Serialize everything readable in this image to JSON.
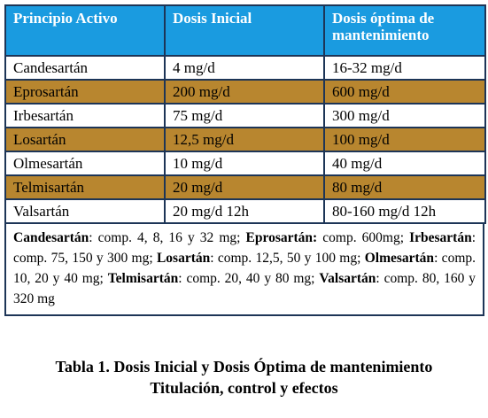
{
  "table": {
    "header": [
      "Principio Activo",
      "Dosis Inicial",
      "Dosis óptima de mantenimiento"
    ],
    "rows": [
      [
        "Candesartán",
        "4 mg/d",
        "16-32 mg/d"
      ],
      [
        "Eprosartán",
        "200 mg/d",
        "600 mg/d"
      ],
      [
        "Irbesartán",
        "75 mg/d",
        "300 mg/d"
      ],
      [
        "Losartán",
        "12,5 mg/d",
        "100 mg/d"
      ],
      [
        "Olmesartán",
        "10 mg/d",
        "40 mg/d"
      ],
      [
        "Telmisartán",
        "20 mg/d",
        "80 mg/d"
      ],
      [
        "Valsartán",
        "20 mg/d 12h",
        "80-160 mg/d 12h"
      ]
    ],
    "footnote": [
      {
        "name": "Candesartán",
        "detail": ": comp. 4, 8, 16 y 32 mg; "
      },
      {
        "name": "Eprosartán:",
        "detail": " comp. 600mg; "
      },
      {
        "name": "Irbesartán",
        "detail": ": comp. 75, 150 y 300 mg; "
      },
      {
        "name": "Losartán",
        "detail": ": comp. 12,5, 50 y 100 mg; "
      },
      {
        "name": "Olmesartán",
        "detail": ": comp. 10, 20 y 40 mg; "
      },
      {
        "name": "Telmisartán",
        "detail": ": comp. 20, 40 y 80 mg; "
      },
      {
        "name": "Valsartán",
        "detail": ": comp. 80, 160 y 320 mg"
      }
    ]
  },
  "caption": {
    "line1": "Tabla 1. Dosis Inicial y Dosis Óptima de mantenimiento",
    "line2": "Titulación, control y efectos"
  }
}
